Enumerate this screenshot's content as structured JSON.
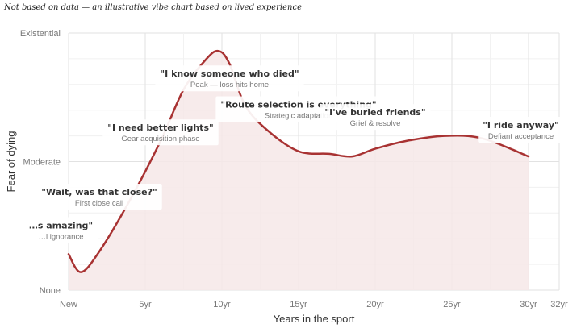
{
  "subtitle": "Not based on data — an illustrative vibe chart based on lived experience",
  "chart_data": {
    "type": "line",
    "title": "",
    "subtitle": "Not based on data — an illustrative vibe chart based on lived experience",
    "xlabel": "Years in the sport",
    "ylabel": "Fear of dying",
    "xlim": [
      0,
      32
    ],
    "ylim": [
      0,
      100
    ],
    "x_ticks": [
      {
        "value": 0,
        "label": "New"
      },
      {
        "value": 5,
        "label": "5yr"
      },
      {
        "value": 10,
        "label": "10yr"
      },
      {
        "value": 15,
        "label": "15yr"
      },
      {
        "value": 20,
        "label": "20yr"
      },
      {
        "value": 25,
        "label": "25yr"
      },
      {
        "value": 30,
        "label": "30yr"
      },
      {
        "value": 32,
        "label": "32yr"
      }
    ],
    "y_ticks": [
      {
        "value": 0,
        "label": "None"
      },
      {
        "value": 50,
        "label": "Moderate"
      },
      {
        "value": 100,
        "label": "Existential"
      }
    ],
    "grid": true,
    "line_color": "#a83232",
    "fill_color": "#f6e7e7",
    "series": [
      {
        "x": [
          0,
          0.8,
          2,
          4,
          6,
          7.5,
          9,
          9.8,
          10.5,
          11.5,
          13,
          15,
          17,
          18.5,
          20,
          22,
          24.5,
          27,
          30
        ],
        "y": [
          14,
          7,
          15,
          35,
          58,
          78,
          90,
          93,
          88,
          72,
          62,
          54,
          53,
          52,
          55,
          58,
          60,
          59,
          52
        ]
      }
    ],
    "annotations": [
      {
        "x": 2,
        "y": 37,
        "quote": "\"Wait, was that close?\"",
        "sub": "First close call"
      },
      {
        "x": 6,
        "y": 62,
        "quote": "\"I need better lights\"",
        "sub": "Gear acquisition phase"
      },
      {
        "x": 10.5,
        "y": 83,
        "quote": "\"I know someone who died\"",
        "sub": "Peak — loss hits home"
      },
      {
        "x": 15,
        "y": 71,
        "quote": "\"Route selection is everything\"",
        "sub": "Strategic adaptation"
      },
      {
        "x": 20,
        "y": 68,
        "quote": "\"I've buried friends\"",
        "sub": "Grief & resolve"
      },
      {
        "x": 29.5,
        "y": 63,
        "quote": "\"I ride anyway\"",
        "sub": "Defiant acceptance"
      },
      {
        "x": -0.5,
        "y": 24,
        "quote": "…s amazing\"",
        "sub": "…l ignorance"
      }
    ]
  }
}
